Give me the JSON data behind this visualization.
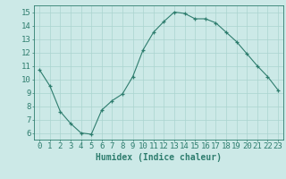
{
  "x": [
    0,
    1,
    2,
    3,
    4,
    5,
    6,
    7,
    8,
    9,
    10,
    11,
    12,
    13,
    14,
    15,
    16,
    17,
    18,
    19,
    20,
    21,
    22,
    23
  ],
  "y": [
    10.7,
    9.5,
    7.6,
    6.7,
    6.0,
    5.9,
    7.7,
    8.4,
    8.9,
    10.2,
    12.2,
    13.5,
    14.3,
    15.0,
    14.9,
    14.5,
    14.5,
    14.2,
    13.5,
    12.8,
    11.9,
    11.0,
    10.2,
    9.2
  ],
  "xlabel": "Humidex (Indice chaleur)",
  "ylim": [
    5.5,
    15.5
  ],
  "xlim": [
    -0.5,
    23.5
  ],
  "yticks": [
    6,
    7,
    8,
    9,
    10,
    11,
    12,
    13,
    14,
    15
  ],
  "xticks": [
    0,
    1,
    2,
    3,
    4,
    5,
    6,
    7,
    8,
    9,
    10,
    11,
    12,
    13,
    14,
    15,
    16,
    17,
    18,
    19,
    20,
    21,
    22,
    23
  ],
  "line_color": "#2e7d6e",
  "marker_color": "#2e7d6e",
  "bg_color": "#cce9e7",
  "grid_color": "#aad4d0",
  "axis_color": "#2e7d6e",
  "tick_color": "#2e7d6e",
  "xlabel_color": "#2e7d6e",
  "xlabel_fontsize": 7,
  "tick_fontsize": 6.5
}
